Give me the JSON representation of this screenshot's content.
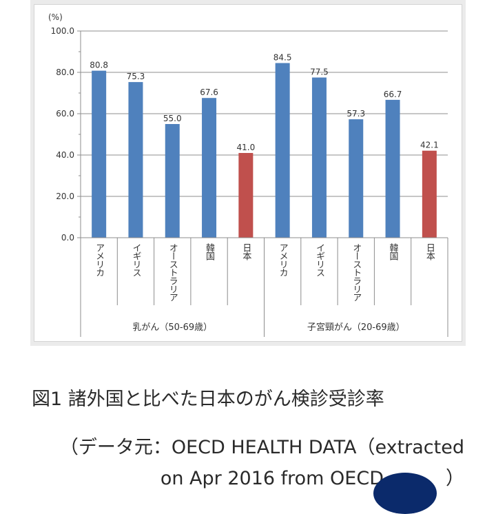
{
  "chart_data": {
    "type": "bar",
    "ylabel": "(%)",
    "ylim": [
      0,
      100
    ],
    "yticks": [
      "0.0",
      "20.0",
      "40.0",
      "60.0",
      "80.0",
      "100.0"
    ],
    "groups": [
      {
        "name": "乳がん（50-69歳）",
        "categories": [
          "アメリカ",
          "イギリス",
          "オーストラリア",
          "韓国",
          "日本"
        ],
        "values": [
          80.8,
          75.3,
          55.0,
          67.6,
          41.0
        ],
        "labels": [
          "80.8",
          "75.3",
          "55.0",
          "67.6",
          "41.0"
        ]
      },
      {
        "name": "子宮頸がん（20-69歳）",
        "categories": [
          "アメリカ",
          "イギリス",
          "オーストラリア",
          "韓国",
          "日本"
        ],
        "values": [
          84.5,
          77.5,
          57.3,
          66.7,
          42.1
        ],
        "labels": [
          "84.5",
          "77.5",
          "57.3",
          "66.7",
          "42.1"
        ]
      }
    ],
    "colors": {
      "default": "#4f81bd",
      "highlight": "#c0504d",
      "highlight_category": "日本"
    },
    "grid": true
  },
  "caption": "図1 諸外国と比べた日本のがん検診受診率",
  "source_line1": "（データ元：OECD HEALTH DATA（extracted",
  "source_line2": "on Apr 2016 from OECD",
  "source_line2_tail": "）"
}
